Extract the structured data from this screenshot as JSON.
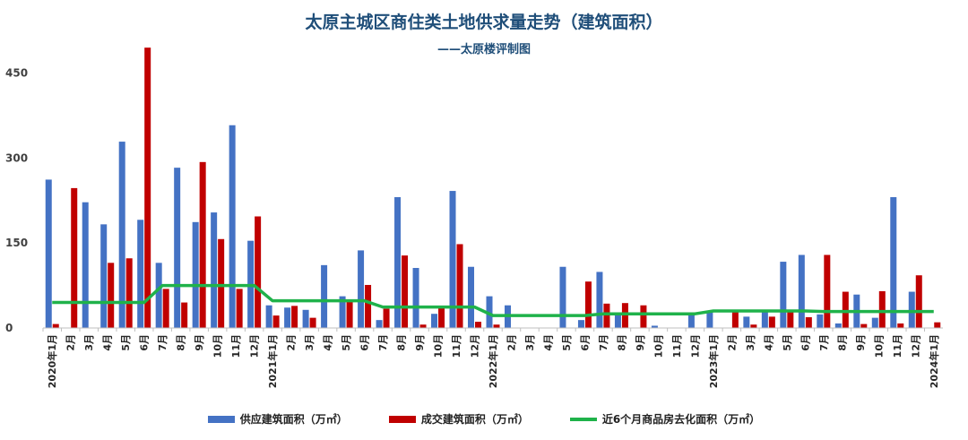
{
  "chart_data": {
    "type": "bar",
    "title": "太原主城区商住类土地供求量走势（建筑面积）",
    "subtitle": "——太原楼评制图",
    "ylim": [
      0,
      500
    ],
    "yticks": [
      0,
      150,
      300,
      450
    ],
    "grid": false,
    "legend_position": "bottom",
    "categories": [
      "2020年1月",
      "2月",
      "3月",
      "4月",
      "5月",
      "6月",
      "7月",
      "8月",
      "9月",
      "10月",
      "11月",
      "12月",
      "2021年1月",
      "2月",
      "3月",
      "4月",
      "5月",
      "6月",
      "7月",
      "8月",
      "9月",
      "10月",
      "11月",
      "12月",
      "2022年1月",
      "2月",
      "3月",
      "4月",
      "5月",
      "6月",
      "7月",
      "8月",
      "9月",
      "10月",
      "11月",
      "12月",
      "2023年1月",
      "2月",
      "3月",
      "4月",
      "5月",
      "6月",
      "7月",
      "8月",
      "9月",
      "10月",
      "11月",
      "12月",
      "2024年1月"
    ],
    "series": [
      {
        "name": "供应建筑面积（万㎡）",
        "kind": "bar",
        "color": "#4472c4",
        "values": [
          262,
          0,
          222,
          183,
          329,
          191,
          115,
          283,
          187,
          204,
          358,
          154,
          40,
          36,
          32,
          111,
          56,
          137,
          14,
          231,
          106,
          25,
          242,
          108,
          56,
          40,
          0,
          0,
          108,
          14,
          99,
          26,
          0,
          4,
          0,
          24,
          29,
          0,
          20,
          29,
          117,
          129,
          24,
          8,
          59,
          18,
          231,
          64,
          0
        ]
      },
      {
        "name": "成交建筑面积（万㎡）",
        "kind": "bar",
        "color": "#c00000",
        "values": [
          7,
          247,
          0,
          115,
          123,
          495,
          69,
          45,
          293,
          157,
          69,
          197,
          22,
          39,
          18,
          0,
          46,
          76,
          34,
          128,
          6,
          37,
          148,
          11,
          6,
          0,
          0,
          0,
          0,
          82,
          43,
          44,
          40,
          0,
          0,
          0,
          0,
          29,
          6,
          20,
          30,
          19,
          129,
          64,
          7,
          65,
          8,
          93,
          10
        ]
      },
      {
        "name": "近6个月商品房去化面积（万㎡）",
        "kind": "line",
        "color": "#1fb24a",
        "values": [
          45,
          45,
          45,
          45,
          45,
          45,
          75,
          75,
          75,
          75,
          75,
          75,
          48,
          48,
          48,
          48,
          48,
          48,
          37,
          37,
          37,
          37,
          37,
          37,
          22,
          22,
          22,
          22,
          22,
          22,
          25,
          25,
          25,
          25,
          25,
          25,
          30,
          30,
          30,
          30,
          30,
          30,
          29,
          29,
          29,
          29,
          29,
          29,
          29
        ]
      }
    ]
  }
}
